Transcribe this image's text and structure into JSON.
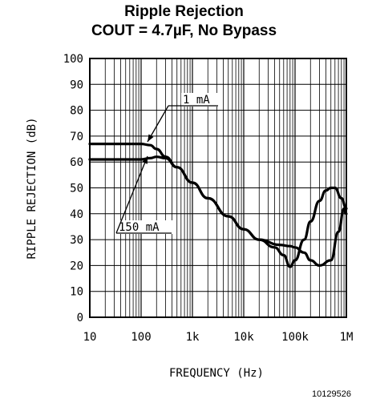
{
  "chart_data": {
    "type": "line",
    "title": "Ripple Rejection",
    "subtitle": "COUT = 4.7µF, No Bypass",
    "xlabel": "FREQUENCY (Hz)",
    "ylabel": "RIPPLE REJECTION (dB)",
    "xscale": "log",
    "xlim": [
      10,
      1000000
    ],
    "ylim": [
      0,
      100
    ],
    "x_ticks": [
      {
        "value": 10,
        "label": "10"
      },
      {
        "value": 100,
        "label": "100"
      },
      {
        "value": 1000,
        "label": "1k"
      },
      {
        "value": 10000,
        "label": "10k"
      },
      {
        "value": 100000,
        "label": "100k"
      },
      {
        "value": 1000000,
        "label": "1M"
      }
    ],
    "y_ticks": [
      0,
      10,
      20,
      30,
      40,
      50,
      60,
      70,
      80,
      90,
      100
    ],
    "grid": true,
    "legend": "none",
    "series": [
      {
        "name": "1 mA",
        "x": [
          10,
          50,
          100,
          150,
          200,
          300,
          500,
          1000,
          2000,
          5000,
          10000,
          20000,
          50000,
          80000,
          100000,
          150000,
          200000,
          300000,
          500000,
          700000,
          900000,
          1000000
        ],
        "y": [
          67,
          67,
          67,
          66.5,
          65,
          62,
          58,
          52,
          46,
          39,
          34,
          30,
          28,
          27.5,
          27,
          25,
          22,
          20,
          22,
          33,
          42,
          40
        ]
      },
      {
        "name": "150 mA",
        "x": [
          10,
          50,
          100,
          150,
          200,
          300,
          500,
          1000,
          2000,
          5000,
          10000,
          20000,
          40000,
          60000,
          80000,
          100000,
          150000,
          200000,
          300000,
          400000,
          500000,
          600000,
          800000,
          1000000
        ],
        "y": [
          61,
          61,
          61,
          61.5,
          62,
          61.5,
          58,
          52,
          46,
          39,
          34,
          30,
          27,
          24,
          19.5,
          22,
          30,
          37,
          45,
          49,
          50,
          50,
          46,
          42
        ]
      }
    ],
    "annotations": [
      {
        "text": "1 mA",
        "target_series": "1 mA"
      },
      {
        "text": "150 mA",
        "target_series": "150 mA"
      }
    ],
    "figure_id": "10129526"
  }
}
